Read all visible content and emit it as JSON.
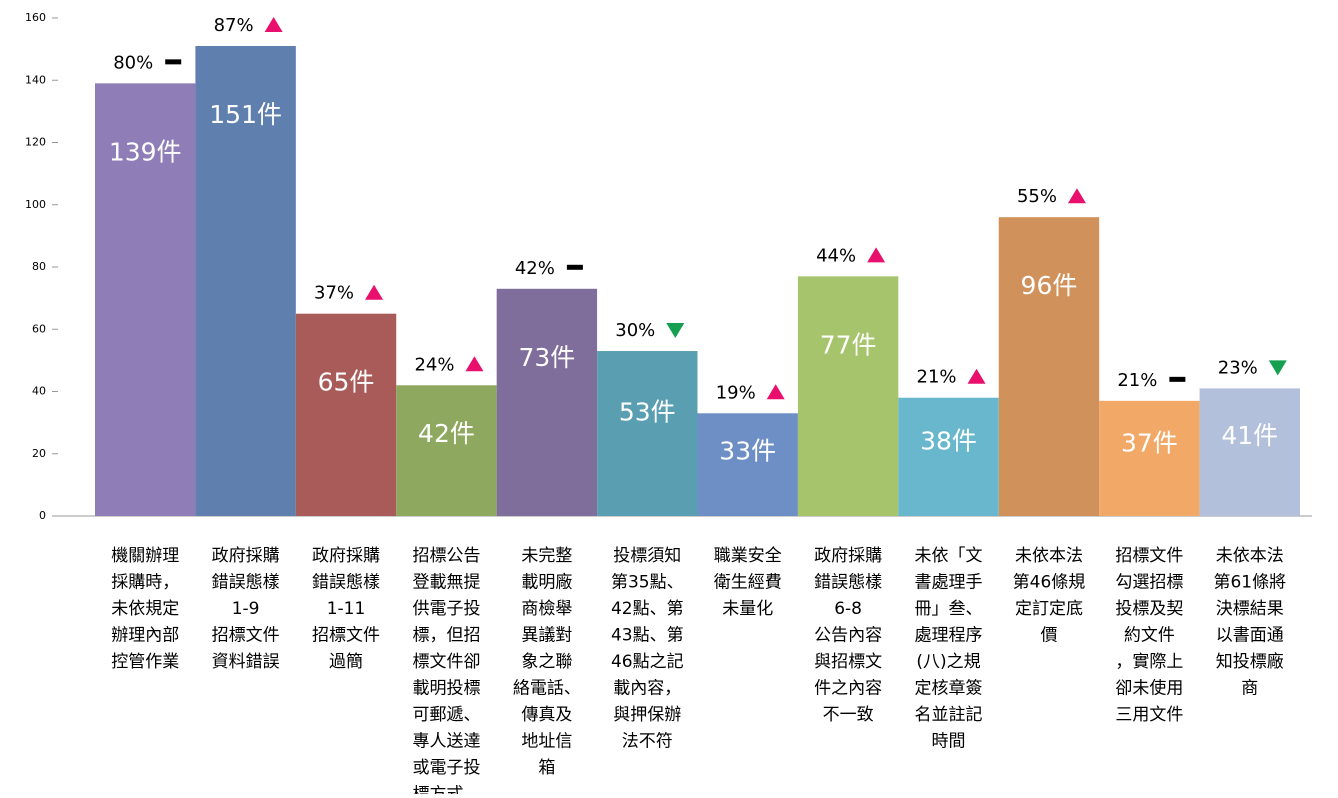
{
  "chart_data": {
    "type": "bar",
    "categories": [
      [
        "機關辦理",
        "採購時，",
        "未依規定",
        "辦理內部",
        "控管作業"
      ],
      [
        "政府採購",
        "錯誤態樣",
        "1-9",
        "招標文件",
        "資料錯誤"
      ],
      [
        "政府採購",
        "錯誤態樣",
        "1-11",
        "招標文件",
        "過簡"
      ],
      [
        "招標公告",
        "登載無提",
        "供電子投",
        "標，但招",
        "標文件卻",
        "載明投標",
        "可郵遞、",
        "專人送達",
        "或電子投",
        "標方式。"
      ],
      [
        "未完整",
        "載明廠",
        "商檢舉",
        "異議對",
        "象之聯",
        "絡電話、",
        "傳真及",
        "地址信",
        "箱"
      ],
      [
        "投標須知",
        "第35點、",
        "42點、第",
        "43點、第",
        "46點之記",
        "載內容，",
        "與押保辦",
        "法不符"
      ],
      [
        "職業安全",
        "衛生經費",
        "未量化"
      ],
      [
        "政府採購",
        "錯誤態樣",
        "6-8",
        "公告內容",
        "與招標文",
        "件之內容",
        "不一致"
      ],
      [
        "未依「文",
        "書處理手",
        "冊」叁、",
        "處理程序",
        "(八)之規",
        "定核章簽",
        "名並註記",
        "時間"
      ],
      [
        "未依本法",
        "第46條規",
        "定訂定底",
        "價"
      ],
      [
        "招標文件",
        "勾選招標",
        "投標及契",
        "約文件",
        "，實際上",
        "卻未使用",
        "三用文件"
      ],
      [
        "未依本法",
        "第61條將",
        "決標結果",
        "以書面通",
        "知投標廠",
        "商"
      ]
    ],
    "values": [
      139,
      151,
      65,
      42,
      73,
      53,
      33,
      77,
      38,
      96,
      37,
      41
    ],
    "value_labels": [
      "139件",
      "151件",
      "65件",
      "42件",
      "73件",
      "53件",
      "33件",
      "77件",
      "38件",
      "96件",
      "37件",
      "41件"
    ],
    "annotations": [
      "80%",
      "87%",
      "37%",
      "24%",
      "42%",
      "30%",
      "19%",
      "44%",
      "21%",
      "55%",
      "21%",
      "23%"
    ],
    "trends": [
      "flat",
      "up",
      "up",
      "up",
      "flat",
      "down",
      "up",
      "up",
      "up",
      "up",
      "flat",
      "down"
    ],
    "colors": [
      "#8e7db6",
      "#5f7fae",
      "#a95b5a",
      "#8ea85f",
      "#7f6d9b",
      "#5a9fb1",
      "#6d8fc5",
      "#a6c46b",
      "#69b7cd",
      "#d0915a",
      "#f2a866",
      "#b2c0dc"
    ],
    "ylim": [
      0,
      160
    ],
    "yticks": [
      0,
      20,
      40,
      60,
      80,
      100,
      120,
      140,
      160
    ]
  }
}
